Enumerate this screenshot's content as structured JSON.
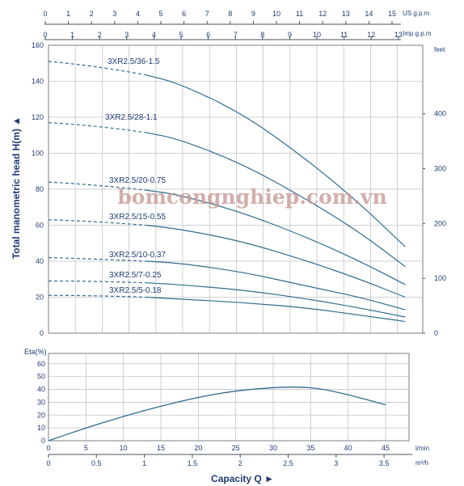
{
  "watermark": "bomcongnghiep.com.vn",
  "chart_data": [
    {
      "type": "line",
      "ylabel": "Total manometric head H(m)",
      "ylabel_marker": "▲",
      "y2label": "feet",
      "xlabel": "",
      "ylim": [
        0,
        160
      ],
      "y_ticks": [
        0,
        20,
        40,
        60,
        80,
        100,
        120,
        140,
        160
      ],
      "y2_ticks": [
        0,
        100,
        200,
        300,
        400
      ],
      "x_top_us": {
        "label": "US g.p.m",
        "ticks": [
          0,
          1,
          2,
          3,
          4,
          5,
          6,
          7,
          8,
          9,
          10,
          11,
          12,
          13,
          14,
          15
        ]
      },
      "x_top_imp": {
        "label": "Imp g.p.m",
        "ticks": [
          0,
          1,
          2,
          3,
          4,
          5,
          6,
          7,
          8,
          9,
          10,
          11,
          12,
          13
        ]
      },
      "x_unit": "l/min",
      "xlim": [
        0,
        60
      ],
      "grid": true,
      "series": [
        {
          "name": "3XR2.5/36-1.5",
          "points": [
            [
              0,
              151
            ],
            [
              10,
              148
            ],
            [
              20,
              139
            ],
            [
              30,
              122
            ],
            [
              40,
              96
            ],
            [
              48,
              72
            ],
            [
              55,
              48
            ]
          ],
          "dashed_until": 15
        },
        {
          "name": "3XR2.5/28-1.1",
          "points": [
            [
              0,
              117
            ],
            [
              10,
              115
            ],
            [
              20,
              108
            ],
            [
              30,
              94
            ],
            [
              40,
              74
            ],
            [
              48,
              56
            ],
            [
              55,
              37
            ]
          ],
          "dashed_until": 15
        },
        {
          "name": "3XR2.5/20-0.75",
          "points": [
            [
              0,
              84
            ],
            [
              10,
              82
            ],
            [
              20,
              77
            ],
            [
              30,
              67
            ],
            [
              40,
              53
            ],
            [
              48,
              40
            ],
            [
              55,
              27
            ]
          ],
          "dashed_until": 15
        },
        {
          "name": "3XR2.5/15-0.55",
          "points": [
            [
              0,
              63
            ],
            [
              10,
              62
            ],
            [
              20,
              58
            ],
            [
              30,
              51
            ],
            [
              40,
              40
            ],
            [
              48,
              30
            ],
            [
              55,
              20
            ]
          ],
          "dashed_until": 15
        },
        {
          "name": "3XR2.5/10-0.37",
          "points": [
            [
              0,
              42
            ],
            [
              10,
              41
            ],
            [
              20,
              39
            ],
            [
              30,
              34
            ],
            [
              40,
              26
            ],
            [
              48,
              20
            ],
            [
              55,
              13
            ]
          ],
          "dashed_until": 15
        },
        {
          "name": "3XR2.5/7-0.25",
          "points": [
            [
              0,
              29
            ],
            [
              10,
              29
            ],
            [
              20,
              27
            ],
            [
              30,
              24
            ],
            [
              40,
              19
            ],
            [
              48,
              14
            ],
            [
              55,
              9
            ]
          ],
          "dashed_until": 15
        },
        {
          "name": "3XR2.5/5-0.18",
          "points": [
            [
              0,
              21
            ],
            [
              10,
              21
            ],
            [
              20,
              19
            ],
            [
              30,
              17
            ],
            [
              40,
              14
            ],
            [
              48,
              10
            ],
            [
              55,
              6.5
            ]
          ],
          "dashed_until": 15
        }
      ]
    },
    {
      "type": "line",
      "ylabel": "Eta(%)",
      "xlabel": "Capacity Q",
      "xlabel_marker": "►",
      "ylim": [
        0,
        70
      ],
      "y_ticks": [
        0,
        10,
        20,
        30,
        40,
        50,
        60
      ],
      "x_ticks": [
        0,
        5,
        10,
        15,
        20,
        25,
        30,
        35,
        40,
        45
      ],
      "x_unit": "l/min",
      "x2_ticks": [
        "0",
        "0.5",
        "1",
        "1.5",
        "2",
        "2.5",
        "3",
        "3.5"
      ],
      "x2_unit": "m³/h",
      "xlim": [
        0,
        50
      ],
      "grid": true,
      "series": [
        {
          "points": [
            [
              0,
              0
            ],
            [
              5,
              10
            ],
            [
              10,
              19
            ],
            [
              15,
              27
            ],
            [
              20,
              34
            ],
            [
              25,
              39
            ],
            [
              30,
              41.5
            ],
            [
              33,
              42
            ],
            [
              36,
              41
            ],
            [
              40,
              36
            ],
            [
              45,
              28
            ]
          ]
        }
      ]
    }
  ]
}
